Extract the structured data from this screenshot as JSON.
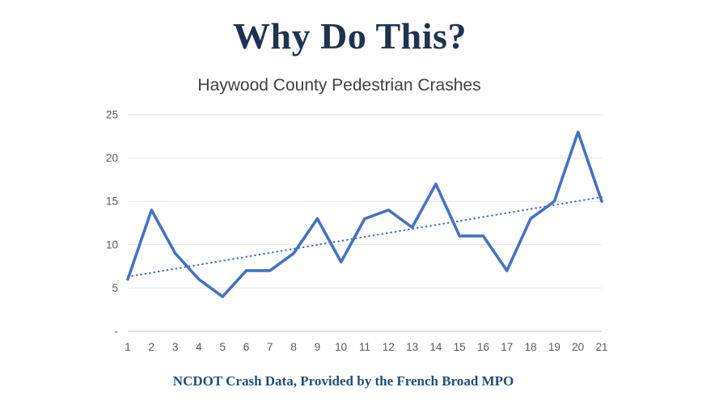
{
  "slide": {
    "title": "Why Do This?",
    "footer": "NCDOT Crash Data, Provided by the French Broad MPO"
  },
  "chart_data": {
    "type": "line",
    "title": "Haywood County Pedestrian Crashes",
    "x": [
      1,
      2,
      3,
      4,
      5,
      6,
      7,
      8,
      9,
      10,
      11,
      12,
      13,
      14,
      15,
      16,
      17,
      18,
      19,
      20,
      21
    ],
    "values": [
      6,
      14,
      9,
      6,
      4,
      7,
      7,
      9,
      13,
      8,
      13,
      14,
      12,
      17,
      11,
      11,
      7,
      13,
      15,
      23,
      15
    ],
    "trendline": {
      "start": 6.3,
      "end": 15.5,
      "style": "dotted"
    },
    "xlabel": "",
    "ylabel": "",
    "ylim": [
      0,
      25
    ],
    "yticks": [
      0,
      5,
      10,
      15,
      20,
      25
    ],
    "ytick_labels": [
      "-",
      "5",
      "10",
      "15",
      "20",
      "25"
    ],
    "grid": true,
    "legend": "none",
    "line_color": "#4472C4",
    "grid_color": "#e4e4e4",
    "axis_color": "#bfbfbf",
    "tick_label_color": "#595959"
  }
}
